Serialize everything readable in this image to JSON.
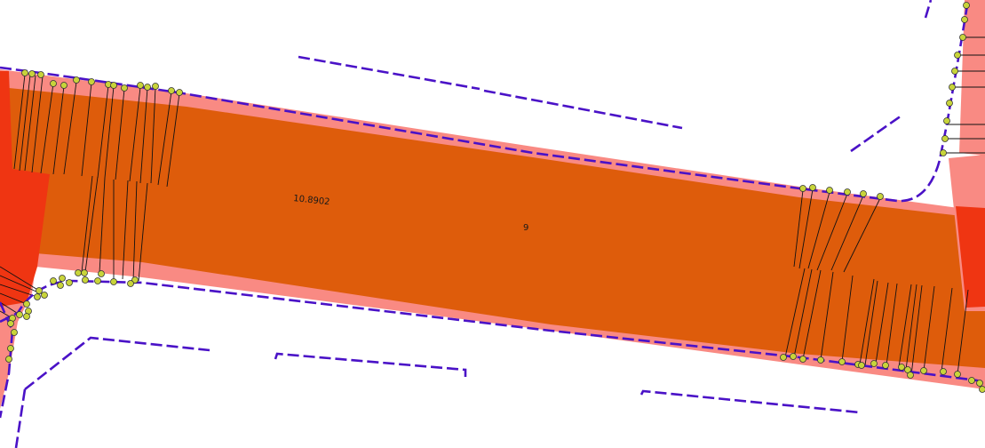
{
  "map": {
    "labels": {
      "road_width": "10.8902",
      "segment_id": "9"
    },
    "colors": {
      "background": "#ffffff",
      "buffer_fill": "#f98a83",
      "road_fill": "#de5c0b",
      "intersection_fill": "#ef3512",
      "kerb_line": "#4a12c7",
      "point_fill": "#c8d43a",
      "point_stroke": "#333333",
      "tick_line": "#111111"
    }
  }
}
